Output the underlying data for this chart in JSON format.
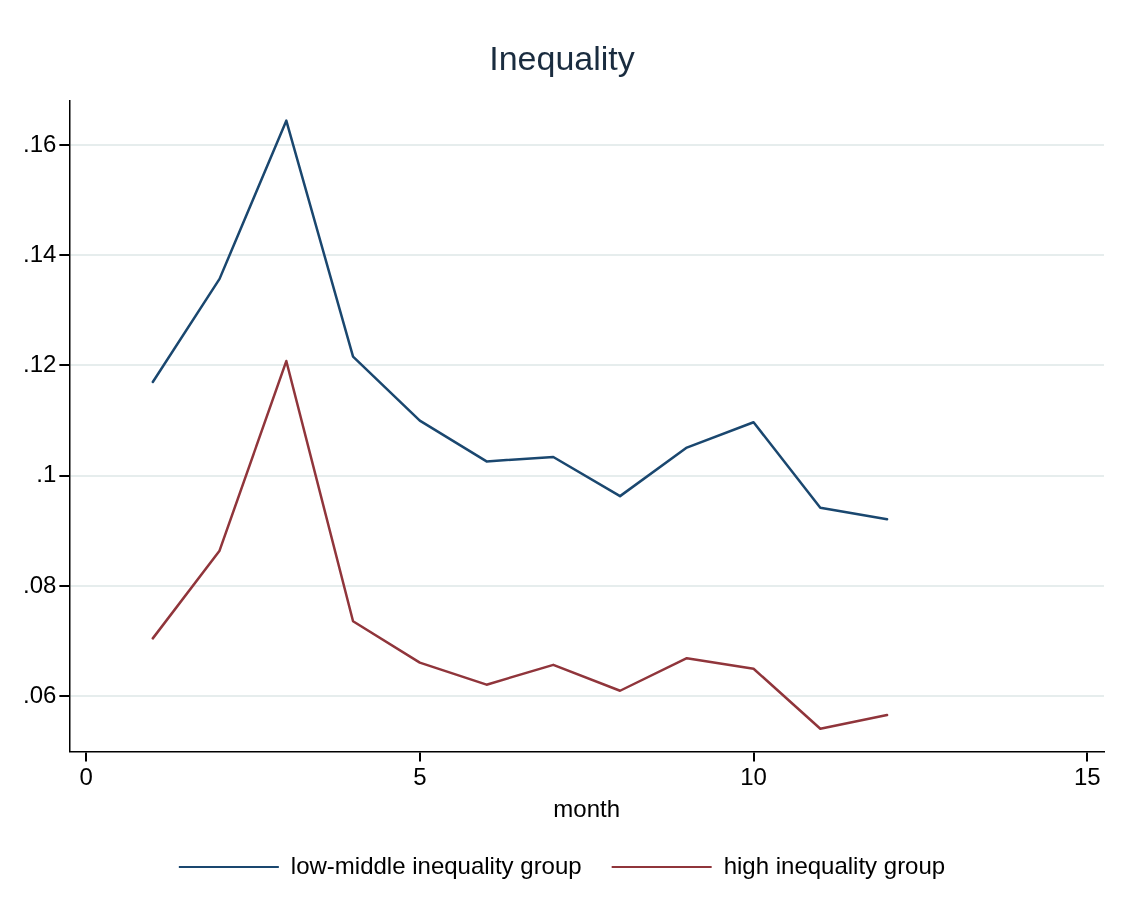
{
  "chart_data": {
    "type": "line",
    "title": "Inequality",
    "xlabel": "month",
    "x": [
      1,
      2,
      3,
      4,
      5,
      6,
      7,
      8,
      9,
      10,
      11,
      12
    ],
    "series": [
      {
        "name": "low-middle inequality group",
        "color": "#1a476f",
        "values": [
          0.117,
          0.1357,
          0.1644,
          0.1216,
          0.11,
          0.1026,
          0.1034,
          0.0963,
          0.1051,
          0.1097,
          0.0942,
          0.0921
        ]
      },
      {
        "name": "high inequality group",
        "color": "#90353b",
        "values": [
          0.0705,
          0.0864,
          0.1208,
          0.0736,
          0.0661,
          0.0621,
          0.0657,
          0.061,
          0.0669,
          0.065,
          0.0541,
          0.0566
        ]
      }
    ],
    "xlim": [
      -0.25,
      15.25
    ],
    "xticks": [
      0,
      5,
      10,
      15
    ],
    "ylim": [
      0.05,
      0.168
    ],
    "yticks": [
      {
        "value": 0.06,
        "label": ".06"
      },
      {
        "value": 0.08,
        "label": ".08"
      },
      {
        "value": 0.1,
        "label": ".1"
      },
      {
        "value": 0.12,
        "label": ".12"
      },
      {
        "value": 0.14,
        "label": ".14"
      },
      {
        "value": 0.16,
        "label": ".16"
      }
    ],
    "grid": "y",
    "legend": "bottom",
    "marker": "none",
    "line_style": "solid"
  }
}
